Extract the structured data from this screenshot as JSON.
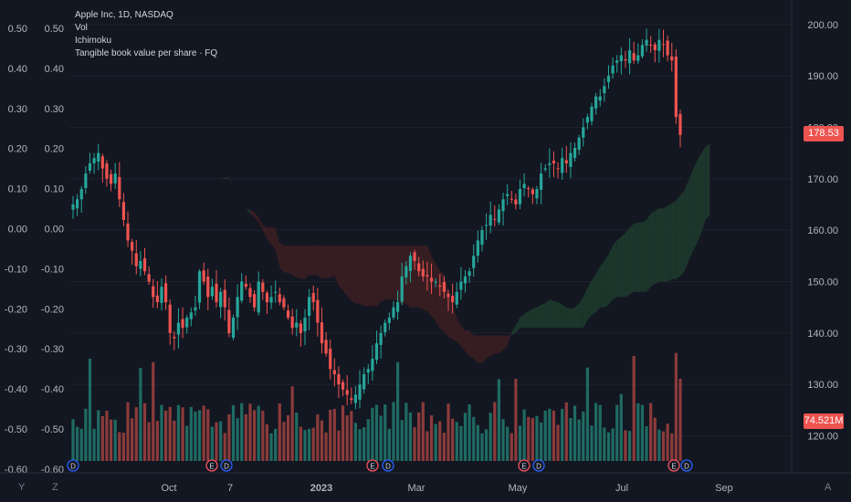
{
  "legend": {
    "symbol": "Apple Inc, 1D, NASDAQ",
    "vol": "Vol",
    "ichimoku": "Ichimoku",
    "indicator": "Tangible book value per share · FQ"
  },
  "badges": {
    "price": "178.53",
    "volume": "74.521M"
  },
  "bottom": {
    "y_label": "Y",
    "z_label": "Z",
    "auto_label": "A"
  },
  "colors": {
    "background": "#131722",
    "up": "#26a69a",
    "down": "#ef5350",
    "cloud_green": "#1e3a2c",
    "cloud_red": "#3b1e22",
    "text": "#d1d4dc",
    "muted": "#787b86"
  },
  "chart_data": {
    "type": "candlestick",
    "symbol": "Apple Inc",
    "interval": "1D",
    "exchange": "NASDAQ",
    "x_ticks": [
      "Oct",
      "7",
      "2023",
      "Mar",
      "May",
      "Jul",
      "Sep"
    ],
    "right_axis": {
      "ticks": [
        "200.00",
        "190.00",
        "180.00",
        "170.00",
        "160.00",
        "150.00",
        "140.00",
        "130.00",
        "120.00"
      ],
      "range": [
        114.6,
        201.2
      ]
    },
    "left_axis_outer": {
      "ticks": [
        "0.50",
        "0.40",
        "0.30",
        "0.20",
        "0.10",
        "0.00",
        "-0.10",
        "-0.20",
        "-0.30",
        "-0.40",
        "-0.50",
        "-0.60"
      ]
    },
    "left_axis_inner": {
      "ticks": [
        "0.50",
        "0.40",
        "0.30",
        "0.20",
        "0.10",
        "0.00",
        "-0.10",
        "-0.20",
        "-0.30",
        "-0.40",
        "-0.50",
        "-0.60"
      ]
    },
    "last_price": 178.53,
    "last_volume": "74.521M",
    "price_series": [
      165,
      166,
      168,
      171,
      173,
      174,
      175,
      172,
      170,
      169,
      171,
      166,
      162,
      158,
      156,
      153,
      154,
      152,
      150,
      147,
      146,
      149,
      146,
      140,
      139,
      142,
      141,
      143,
      144,
      145,
      152,
      150,
      147,
      149,
      146,
      148,
      145,
      140,
      143,
      147,
      150,
      149,
      147,
      145,
      150,
      148,
      146,
      147,
      148,
      146,
      145,
      143,
      141,
      142,
      140,
      143,
      147,
      146,
      142,
      138,
      136,
      133,
      132,
      130,
      129,
      128,
      127,
      128,
      130,
      132,
      133,
      135,
      138,
      140,
      142,
      143,
      145,
      146,
      151,
      153,
      155,
      154,
      152,
      151,
      151,
      150,
      150,
      149,
      148,
      147,
      146,
      148,
      150,
      151,
      152,
      155,
      158,
      160,
      161,
      163,
      162,
      164,
      166,
      167,
      166,
      165,
      168,
      169,
      168,
      167,
      168,
      171,
      172,
      173,
      173,
      172,
      174,
      173,
      175,
      176,
      178,
      180,
      182,
      184,
      186,
      186,
      188,
      190,
      192,
      193,
      194,
      193,
      195,
      193,
      194,
      196,
      197,
      196,
      195,
      197,
      196,
      194,
      193,
      182,
      178.5
    ],
    "volume_note": "daily volume bars at bottom, scaled; last 74.521M",
    "event_markers": [
      "D",
      "E",
      "D",
      "E",
      "D",
      "E",
      "D",
      "E",
      "D"
    ]
  }
}
